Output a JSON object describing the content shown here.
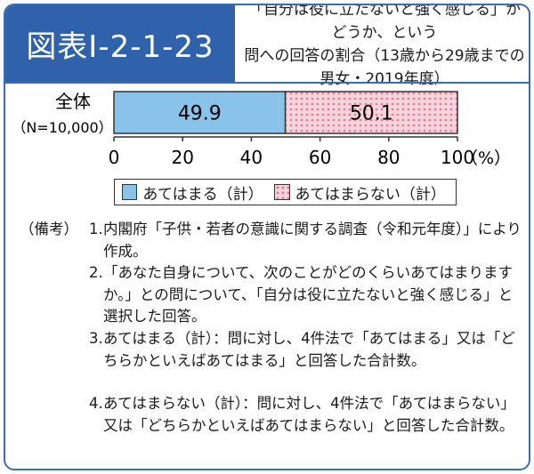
{
  "header": {
    "figure_label": "図表Ⅰ-2-1-23",
    "title": "「自分は役に立たないと強く感じる」かどうか、という\n問への回答の割合（13歳から29歳までの男女・2019年度）"
  },
  "chart_data": {
    "type": "bar",
    "stacked": true,
    "orientation": "horizontal",
    "categories": [
      "全体"
    ],
    "category_note": "（N=10,000）",
    "series": [
      {
        "name": "あてはまる（計）",
        "values": [
          49.9
        ],
        "color": "#89c3ea"
      },
      {
        "name": "あてはまらない（計）",
        "values": [
          50.1
        ],
        "color": "#f7d3dd"
      }
    ],
    "data_labels": [
      "49.9",
      "50.1"
    ],
    "xlim": [
      0,
      100
    ],
    "xticks": [
      "0",
      "20",
      "40",
      "60",
      "80",
      "100"
    ],
    "xlabel_unit": "（%）",
    "legend_position": "bottom"
  },
  "notes": {
    "heading": "（備考）",
    "items": [
      {
        "num": "1.",
        "text": "内閣府「子供・若者の意識に関する調査（令和元年度）」により作成。"
      },
      {
        "num": "2.",
        "text": "「あなた自身について、次のことがどのくらいあてはまりますか。」との問について、「自分は役に立たないと強く感じる」と選択した回答。"
      },
      {
        "num": "3.",
        "text": "あてはまる（計）：問に対し、4件法で「あてはまる」又は「どちらかといえばあてはまる」と回答した合計数。"
      },
      {
        "num": "4.",
        "text": "あてはまらない（計）：問に対し、4件法で「あてはまらない」又は「どちらかといえばあてはまらない」と回答した合計数。"
      }
    ]
  }
}
